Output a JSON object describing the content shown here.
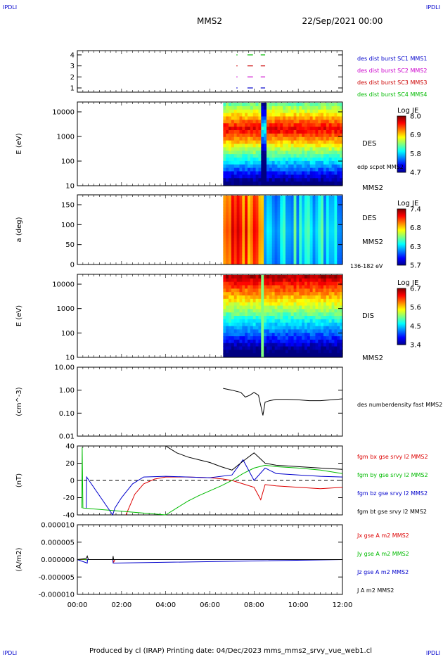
{
  "header": {
    "corner_left": "IPDLI",
    "corner_right": "IPDLI",
    "spacecraft": "MMS2",
    "date": "22/Sep/2021 00:00"
  },
  "footer": {
    "text": "Produced by cl (IRAP)   Printing date: 04/Dec/2023   mms_mms2_srvy_vue_web1.cl",
    "corner_left": "IPDLI",
    "corner_right": "IPDLI"
  },
  "time_axis": {
    "range_hours": [
      0,
      12
    ],
    "ticks": [
      "00:00",
      "02:00",
      "04:00",
      "06:00",
      "08:00",
      "10:00",
      "12:00"
    ]
  },
  "chart_data": [
    {
      "type": "scatter",
      "id": "availability",
      "ylabels": [
        "4",
        "3",
        "2",
        "1"
      ],
      "legend": [
        {
          "label": "des dist burst SC1 MMS1",
          "color": "#0000cc"
        },
        {
          "label": "des dist burst SC2 MMS2",
          "color": "#cc00cc"
        },
        {
          "label": "des dist burst SC3 MMS3",
          "color": "#cc0000"
        },
        {
          "label": "des dist burst SC4 MMS4",
          "color": "#00bb00"
        }
      ],
      "marks": [
        {
          "sc": 4,
          "color": "#00bb00",
          "segments": [
            [
              7.2,
              7.25
            ],
            [
              7.7,
              7.95
            ],
            [
              8.3,
              8.5
            ]
          ]
        },
        {
          "sc": 3,
          "color": "#cc0000",
          "segments": [
            [
              7.2,
              7.25
            ],
            [
              7.7,
              7.95
            ],
            [
              8.3,
              8.5
            ]
          ]
        },
        {
          "sc": 2,
          "color": "#cc00cc",
          "segments": [
            [
              7.2,
              7.25
            ],
            [
              7.7,
              7.95
            ],
            [
              8.3,
              8.5
            ]
          ]
        },
        {
          "sc": 1,
          "color": "#0000cc",
          "segments": [
            [
              7.2,
              7.25
            ],
            [
              7.7,
              7.95
            ],
            [
              8.3,
              8.5
            ]
          ]
        }
      ]
    },
    {
      "type": "heatmap",
      "id": "des-energy",
      "ylabel": "E (eV)",
      "yscale": "log",
      "ylim": [
        10,
        30000
      ],
      "yticks": [
        "10000",
        "1000",
        "100",
        "10"
      ],
      "x_start_hours": 6.6,
      "right_labels": [
        "DES",
        "edp scpot MMS2",
        "MMS2"
      ],
      "colorbar": {
        "title": "Log JE",
        "ticks": [
          "8.0",
          "6.9",
          "5.8",
          "4.7"
        ],
        "range": [
          4.7,
          8.0
        ]
      }
    },
    {
      "type": "heatmap",
      "id": "des-pitch",
      "ylabel": "a (deg)",
      "ylim": [
        0,
        180
      ],
      "yticks": [
        "150",
        "100",
        "50",
        "0"
      ],
      "x_start_hours": 6.6,
      "right_labels": [
        "DES",
        "MMS2",
        "136-182 eV"
      ],
      "colorbar": {
        "title": "Log JE",
        "ticks": [
          "7.4",
          "6.8",
          "6.3",
          "5.7"
        ],
        "range": [
          5.7,
          7.4
        ]
      }
    },
    {
      "type": "heatmap",
      "id": "dis-energy",
      "ylabel": "E (eV)",
      "yscale": "log",
      "ylim": [
        10,
        30000
      ],
      "yticks": [
        "10000",
        "1000",
        "100",
        "10"
      ],
      "x_start_hours": 6.6,
      "right_labels": [
        "DIS",
        "MMS2"
      ],
      "colorbar": {
        "title": "Log JE",
        "ticks": [
          "6.7",
          "5.6",
          "4.5",
          "3.4"
        ],
        "range": [
          3.4,
          6.7
        ]
      }
    },
    {
      "type": "line",
      "id": "density",
      "ylabel": "(cm^-3)",
      "yscale": "log",
      "ylim": [
        0.01,
        10
      ],
      "yticks": [
        "10.00",
        "1.00",
        "0.10",
        "0.01"
      ],
      "series": [
        {
          "name": "des numberdensity fast MMS2",
          "color": "#000000",
          "x": [
            6.6,
            7.0,
            7.4,
            7.6,
            7.8,
            8.0,
            8.2,
            8.4,
            8.5,
            8.7,
            9.0,
            9.5,
            10.0,
            10.5,
            11.0,
            11.5,
            12.0
          ],
          "y": [
            1.2,
            1.0,
            0.8,
            0.5,
            0.6,
            0.8,
            0.6,
            0.08,
            0.3,
            0.35,
            0.4,
            0.4,
            0.38,
            0.35,
            0.35,
            0.38,
            0.42
          ]
        }
      ]
    },
    {
      "type": "line",
      "id": "magnetic-field",
      "ylabel": "(nT)",
      "ylim": [
        -50,
        50
      ],
      "yticks": [
        "40",
        "20",
        "0",
        "-20",
        "-40"
      ],
      "series": [
        {
          "name": "fgm bx gse srvy l2 MMS2",
          "color": "#dd0000",
          "x": [
            2.2,
            2.4,
            2.6,
            3.0,
            3.5,
            4.0,
            5.0,
            6.0,
            6.6,
            7.0,
            7.5,
            8.0,
            8.3,
            8.5,
            9.0,
            10.0,
            11.0,
            12.0
          ],
          "y": [
            -50,
            -35,
            -20,
            -5,
            2,
            5,
            5,
            4,
            2,
            0,
            -5,
            -10,
            -28,
            -6,
            -8,
            -10,
            -12,
            -10
          ]
        },
        {
          "name": "fgm by gse srvy l2 MMS2",
          "color": "#00bb00",
          "x": [
            0.2,
            0.22,
            0.25,
            4.0,
            4.5,
            5.0,
            5.5,
            6.0,
            6.5,
            7.0,
            7.5,
            8.0,
            8.5,
            9.0,
            10.0,
            11.0,
            12.0
          ],
          "y": [
            -40,
            48,
            -40,
            -50,
            -40,
            -30,
            -22,
            -15,
            -8,
            0,
            10,
            18,
            22,
            20,
            18,
            15,
            10
          ]
        },
        {
          "name": "fgm bz gse srvy l2 MMS2",
          "color": "#0000cc",
          "x": [
            0.4,
            0.42,
            1.6,
            1.7,
            2.0,
            2.5,
            3.0,
            4.0,
            5.0,
            6.0,
            7.0,
            7.5,
            8.0,
            8.5,
            9.0,
            10.0,
            11.0,
            12.0
          ],
          "y": [
            -40,
            5,
            -50,
            -40,
            -25,
            -5,
            5,
            6,
            5,
            4,
            8,
            30,
            0,
            18,
            10,
            8,
            6,
            5
          ]
        },
        {
          "name": "fgm bt gse srvy l2 MMS2",
          "color": "#000000",
          "x": [
            4.0,
            4.5,
            5.0,
            5.5,
            6.0,
            6.5,
            7.0,
            7.5,
            8.0,
            8.5,
            9.0,
            10.0,
            11.0,
            12.0
          ],
          "y": [
            50,
            40,
            34,
            30,
            26,
            20,
            15,
            28,
            40,
            25,
            22,
            20,
            18,
            16
          ]
        }
      ]
    },
    {
      "type": "line",
      "id": "current-density",
      "ylabel": "(A/m2)",
      "ylim": [
        -0.0001,
        0.0001
      ],
      "yticks": [
        "0.000010",
        "0.000005",
        "0.000000",
        "-0.000005",
        "-0.000010"
      ],
      "series": [
        {
          "name": "Jx gse A m2 MMS2",
          "color": "#dd0000",
          "x": [
            0,
            1.6,
            1.65,
            1.7,
            12
          ],
          "y": [
            0,
            0,
            -7e-06,
            0,
            0
          ]
        },
        {
          "name": "Jy gse A m2 MMS2",
          "color": "#00bb00",
          "x": [
            0,
            0.3,
            0.4,
            0.5,
            12
          ],
          "y": [
            0,
            1e-06,
            -1e-06,
            0,
            0
          ]
        },
        {
          "name": "Jz gse A m2 MMS2",
          "color": "#0000cc",
          "x": [
            0,
            0.45,
            0.46,
            1.6,
            1.62,
            12
          ],
          "y": [
            0,
            -1e-05,
            0,
            0,
            -1e-05,
            0
          ]
        },
        {
          "name": "J A m2 MMS2",
          "color": "#000000",
          "x": [
            0,
            0.4,
            0.45,
            0.5,
            1.6,
            1.62,
            1.64,
            12
          ],
          "y": [
            0,
            3e-06,
            1e-05,
            0,
            0,
            1e-05,
            0,
            0
          ]
        }
      ]
    }
  ]
}
